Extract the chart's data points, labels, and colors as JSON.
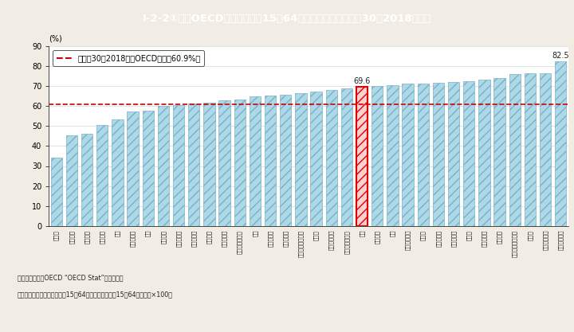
{
  "title": "I-2-2①図　OECD諸国の女性（15～64歳）の就業率（平成Ｓ30（2018）年）",
  "ylabel": "(%)",
  "ylim": [
    0,
    90
  ],
  "yticks": [
    0,
    10,
    20,
    30,
    40,
    50,
    60,
    70,
    80,
    90
  ],
  "oecd_avg": 60.9,
  "oecd_avg_label": "平成Ｓ30（2018）年OECD平均（60.9%）",
  "highlight_index": 20,
  "highlight_value": 69.6,
  "highlight_label": "69.6",
  "last_value": 82.5,
  "last_label": "82.5",
  "bar_color": "#add8e8",
  "bar_hatch": "///",
  "bar_edge_color": "#7ab0c8",
  "highlight_bar_color": "#ffd0d0",
  "highlight_bar_edge_color": "#e00000",
  "highlight_hatch_color": "#e00000",
  "avg_line_color": "#cc0000",
  "title_bg_color": "#29b6b6",
  "title_text_color": "#ffffff",
  "background_color": "#f2ede4",
  "plot_bg_color": "#ffffff",
  "values": [
    34.0,
    45.2,
    46.2,
    50.4,
    53.2,
    57.2,
    57.8,
    60.1,
    60.4,
    61.2,
    61.9,
    62.8,
    63.4,
    65.1,
    65.4,
    65.9,
    66.4,
    67.2,
    68.0,
    68.8,
    69.6,
    70.1,
    70.5,
    71.2,
    71.5,
    71.8,
    72.3,
    72.5,
    73.5,
    74.0,
    76.1,
    76.4,
    76.6,
    82.5
  ],
  "v_labels": [
    "トルコ",
    "ギリシャ",
    "メキシコ",
    "イタリア",
    "チリ",
    "スロバキア",
    "韓国",
    "ベルギー",
    "ポーランド",
    "スロバニア",
    "フランス",
    "ハンガリー",
    "ルクセンブルク",
    "米国",
    "イスラエル",
    "ポルトガル",
    "スロバキア共和国",
    "チェコ",
    "オーストリア",
    "オーストラリア",
    "日本",
    "ラトビア",
    "英国",
    "フィンランド",
    "カナダ",
    "デンマーク",
    "エストニア",
    "ドイツ",
    "ノルウェー",
    "オランダ",
    "ニュージーランド",
    "スイス",
    "スウェーデン",
    "アイスランド"
  ],
  "footnote1": "（備考）　１．OECD “OECD Stat”より作成。",
  "footnote2": "　　　　　２．就業率は，、15～64歳就業者数」／、15～64歳人口」×100。"
}
